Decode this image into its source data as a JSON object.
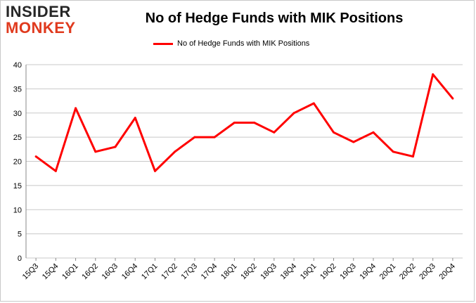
{
  "logo": {
    "line1": "INSIDER",
    "line2": "MONKEY"
  },
  "chart_data": {
    "type": "line",
    "title": "No of Hedge Funds with MIK Positions",
    "xlabel": "",
    "ylabel": "",
    "categories": [
      "15Q3",
      "15Q4",
      "16Q1",
      "16Q2",
      "16Q3",
      "16Q4",
      "17Q1",
      "17Q2",
      "17Q3",
      "17Q4",
      "18Q1",
      "18Q2",
      "18Q3",
      "18Q4",
      "19Q1",
      "19Q2",
      "19Q3",
      "19Q4",
      "20Q1",
      "20Q2",
      "20Q3",
      "20Q4"
    ],
    "series": [
      {
        "name": "No of Hedge Funds with MIK Positions",
        "color": "#ff0000",
        "values": [
          21,
          18,
          31,
          22,
          23,
          29,
          18,
          22,
          25,
          25,
          28,
          28,
          26,
          30,
          32,
          26,
          24,
          26,
          22,
          21,
          38,
          33
        ]
      }
    ],
    "ylim": [
      0,
      40
    ],
    "yticks": [
      0,
      5,
      10,
      15,
      20,
      25,
      30,
      35,
      40
    ],
    "grid": true,
    "legend_position": "top"
  }
}
